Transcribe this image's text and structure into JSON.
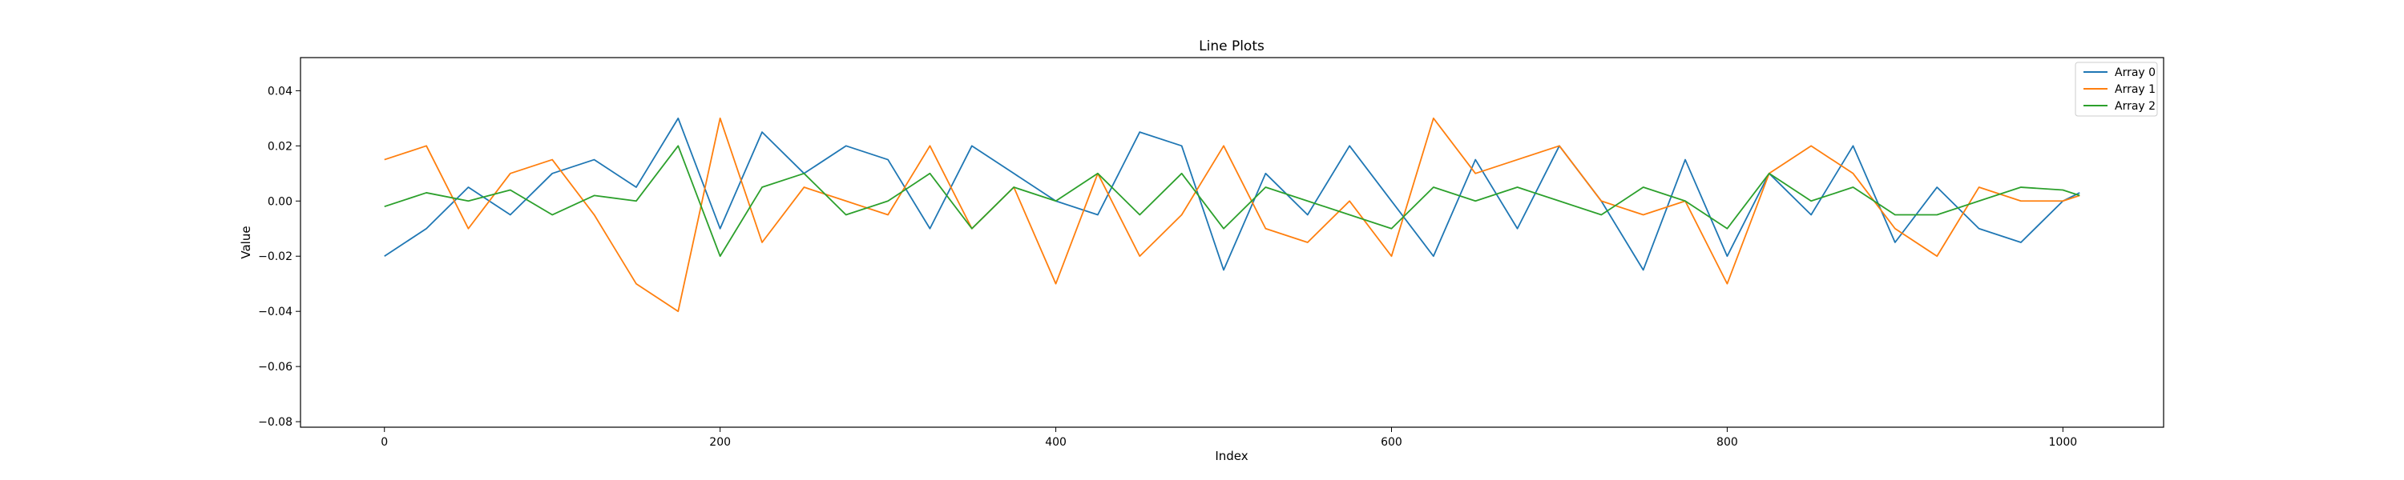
{
  "chart_data": {
    "type": "line",
    "title": "Line Plots",
    "xlabel": "Index",
    "ylabel": "Value",
    "xlim": [
      -50,
      1060
    ],
    "ylim": [
      -0.082,
      0.052
    ],
    "x_ticks": [
      0,
      200,
      400,
      600,
      800,
      1000
    ],
    "y_ticks": [
      -0.08,
      -0.06,
      -0.04,
      -0.02,
      0.0,
      0.02,
      0.04
    ],
    "x_tick_labels": [
      "0",
      "200",
      "400",
      "600",
      "800",
      "1000"
    ],
    "y_tick_labels": [
      "−0.08",
      "−0.06",
      "−0.04",
      "−0.02",
      "0.00",
      "0.02",
      "0.04"
    ],
    "grid": false,
    "legend_position": "top-right",
    "x": [
      0,
      25,
      50,
      75,
      100,
      125,
      150,
      175,
      200,
      225,
      250,
      275,
      300,
      325,
      350,
      375,
      400,
      425,
      450,
      475,
      500,
      525,
      550,
      575,
      600,
      625,
      650,
      675,
      700,
      725,
      750,
      775,
      800,
      825,
      850,
      875,
      900,
      925,
      950,
      975,
      1000,
      1010
    ],
    "series": [
      {
        "name": "Array 0",
        "color": "#1f77b4",
        "values": [
          -0.02,
          -0.01,
          0.005,
          -0.005,
          0.01,
          0.015,
          0.005,
          0.03,
          -0.01,
          0.025,
          0.01,
          0.02,
          0.015,
          -0.01,
          0.02,
          0.01,
          0.0,
          -0.005,
          0.025,
          0.02,
          -0.025,
          0.01,
          -0.005,
          0.02,
          0.0,
          -0.02,
          0.015,
          -0.01,
          0.02,
          0.0,
          -0.025,
          0.015,
          -0.02,
          0.01,
          -0.005,
          0.02,
          -0.015,
          0.005,
          -0.01,
          -0.015,
          0.0,
          0.003
        ]
      },
      {
        "name": "Array 1",
        "color": "#ff7f0e",
        "values": [
          0.015,
          0.02,
          -0.01,
          0.01,
          0.015,
          -0.005,
          -0.03,
          -0.04,
          0.03,
          -0.015,
          0.005,
          0.0,
          -0.005,
          0.02,
          -0.01,
          0.005,
          -0.03,
          0.01,
          -0.02,
          -0.005,
          0.02,
          -0.01,
          -0.015,
          0.0,
          -0.02,
          0.03,
          0.01,
          0.015,
          0.02,
          0.0,
          -0.005,
          0.0,
          -0.03,
          0.01,
          0.02,
          0.01,
          -0.01,
          -0.02,
          0.005,
          0.0,
          0.0,
          0.002
        ]
      },
      {
        "name": "Array 2",
        "color": "#2ca02c",
        "values": [
          -0.002,
          0.003,
          0.0,
          0.004,
          -0.005,
          0.002,
          0.0,
          0.02,
          -0.02,
          0.005,
          0.01,
          -0.005,
          0.0,
          0.01,
          -0.01,
          0.005,
          0.0,
          0.01,
          -0.005,
          0.01,
          -0.01,
          0.005,
          0.0,
          -0.005,
          -0.01,
          0.005,
          0.0,
          0.005,
          0.0,
          -0.005,
          0.005,
          0.0,
          -0.01,
          0.01,
          0.0,
          0.005,
          -0.005,
          -0.005,
          0.0,
          0.005,
          0.004,
          0.002
        ]
      }
    ]
  }
}
